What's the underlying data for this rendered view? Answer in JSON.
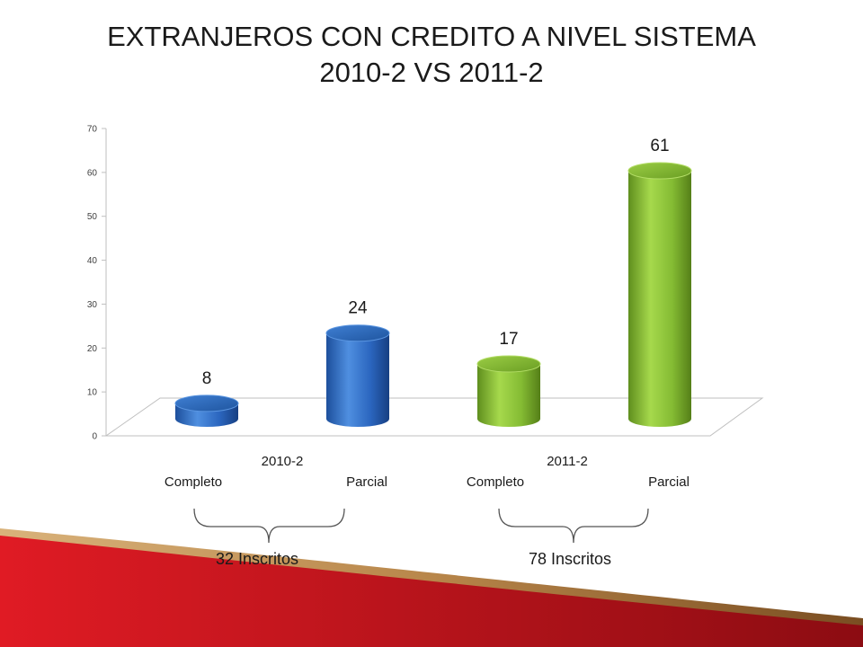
{
  "slide": {
    "title_line1": "EXTRANJEROS CON CREDITO A NIVEL SISTEMA",
    "title_line2": "2010-2  VS 2011-2"
  },
  "chart_data": {
    "type": "bar",
    "groups": [
      "2010-2",
      "2011-2"
    ],
    "categories": [
      "Completo",
      "Parcial",
      "Completo",
      "Parcial"
    ],
    "bars": [
      {
        "group": "2010-2",
        "category": "Completo",
        "value": 8,
        "color": "#2a63b8"
      },
      {
        "group": "2010-2",
        "category": "Parcial",
        "value": 24,
        "color": "#2a63b8"
      },
      {
        "group": "2011-2",
        "category": "Completo",
        "value": 17,
        "color": "#7db32c"
      },
      {
        "group": "2011-2",
        "category": "Parcial",
        "value": 61,
        "color": "#7db32c"
      }
    ],
    "ylim": [
      0,
      70
    ],
    "yticks": [
      0,
      10,
      20,
      30,
      40,
      50,
      60,
      70
    ],
    "brackets": [
      {
        "group": "2010-2",
        "label": "32 Inscritos"
      },
      {
        "group": "2011-2",
        "label": "78 Inscritos"
      }
    ],
    "colors": {
      "blue": "#2a63b8",
      "green": "#7db32c",
      "accent_red": "#b3121a"
    }
  }
}
